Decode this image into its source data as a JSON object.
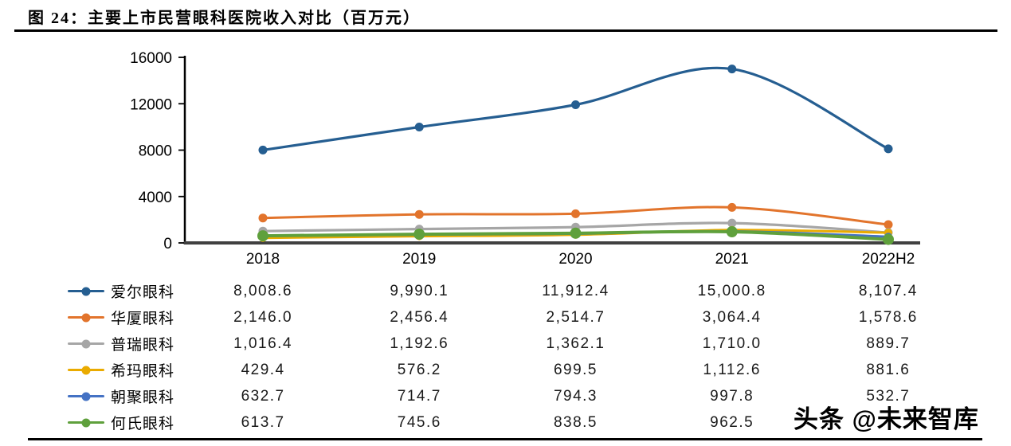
{
  "title": "图 24：主要上市民营眼科医院收入对比（百万元）",
  "watermark": "头条 @未来智库",
  "chart_data": {
    "type": "line",
    "title": "主要上市民营眼科医院收入对比（百万元）",
    "xlabel": "",
    "ylabel": "",
    "categories": [
      "2018",
      "2019",
      "2020",
      "2021",
      "2022H2"
    ],
    "y_ticks": [
      0,
      4000,
      8000,
      12000,
      16000
    ],
    "ylim": [
      0,
      16000
    ],
    "grid": false,
    "smooth_lines": true,
    "legend_position": "table-left",
    "axis_color": "#000000",
    "x_axis_color": "#404040",
    "series": [
      {
        "name": "爱尔眼科",
        "color": "#255E91",
        "line_width": 3.2,
        "marker_r": 5.5,
        "values": [
          8008.6,
          9990.1,
          11912.4,
          15000.8,
          8107.4
        ],
        "display": [
          "8,008.6",
          "9,990.1",
          "11,912.4",
          "15,000.8",
          "8,107.4"
        ]
      },
      {
        "name": "华厦眼科",
        "color": "#E2742C",
        "line_width": 3,
        "marker_r": 5.5,
        "values": [
          2146.0,
          2456.4,
          2514.7,
          3064.4,
          1578.6
        ],
        "display": [
          "2,146.0",
          "2,456.4",
          "2,514.7",
          "3,064.4",
          "1,578.6"
        ]
      },
      {
        "name": "普瑞眼科",
        "color": "#A6A6A6",
        "line_width": 3.2,
        "marker_r": 5.5,
        "values": [
          1016.4,
          1192.6,
          1362.1,
          1710.0,
          889.7
        ],
        "display": [
          "1,016.4",
          "1,192.6",
          "1,362.1",
          "1,710.0",
          "889.7"
        ]
      },
      {
        "name": "希玛眼科",
        "color": "#EAAB00",
        "line_width": 3,
        "marker_r": 5,
        "values": [
          429.4,
          576.2,
          699.5,
          1112.6,
          881.6
        ],
        "display": [
          "429.4",
          "576.2",
          "699.5",
          "1,112.6",
          "881.6"
        ]
      },
      {
        "name": "朝聚眼科",
        "color": "#4472C4",
        "line_width": 3,
        "marker_r": 5,
        "values": [
          632.7,
          714.7,
          794.3,
          997.8,
          532.7
        ],
        "display": [
          "632.7",
          "714.7",
          "794.3",
          "997.8",
          "532.7"
        ]
      },
      {
        "name": "何氏眼科",
        "color": "#5FA03C",
        "line_width": 4,
        "marker_r": 7,
        "values": [
          613.7,
          745.6,
          838.5,
          962.5,
          300
        ],
        "display": [
          "613.7",
          "745.6",
          "838.5",
          "962.5",
          ""
        ]
      }
    ]
  }
}
